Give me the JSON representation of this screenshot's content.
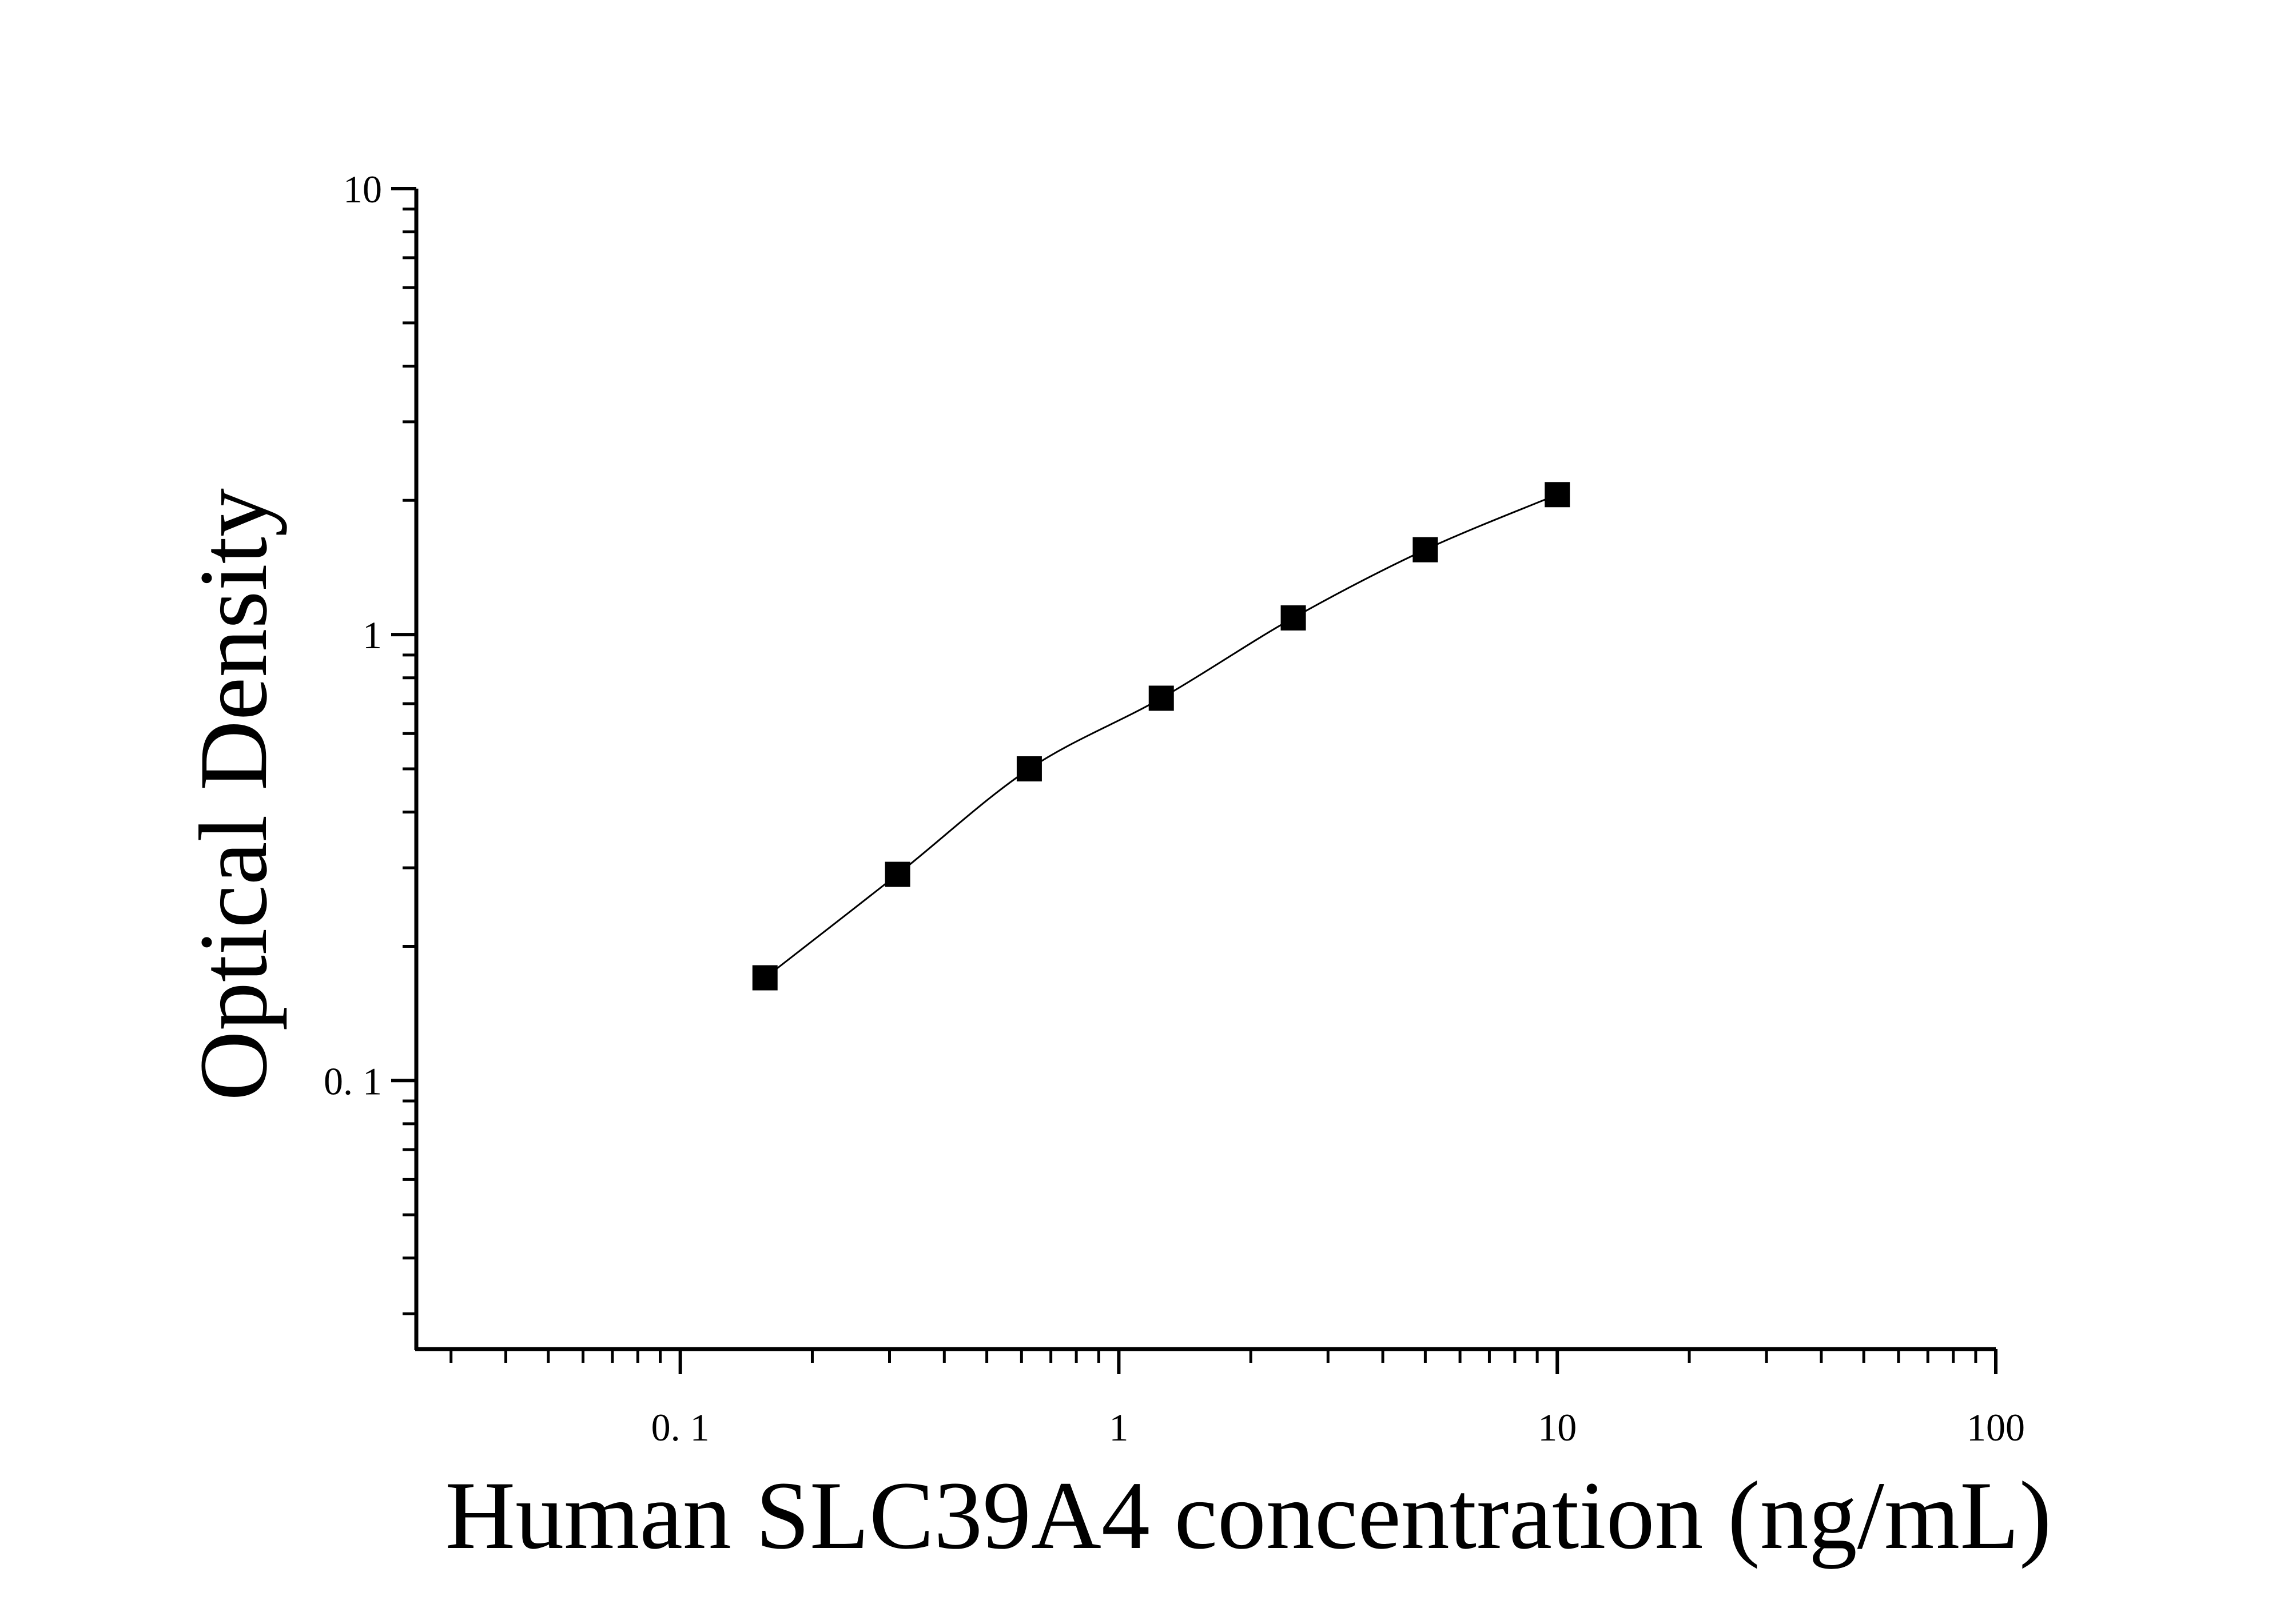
{
  "chart_data": {
    "type": "scatter",
    "title": "",
    "xlabel": "Human SLC39A4 concentration (ng/mL)",
    "ylabel": "Optical Density",
    "x_scale": "log",
    "y_scale": "log",
    "xlim": [
      0.025,
      100
    ],
    "ylim": [
      0.025,
      10
    ],
    "x_ticks": [
      {
        "value": 0.1,
        "label": "0. 1"
      },
      {
        "value": 1,
        "label": "1"
      },
      {
        "value": 10,
        "label": "10"
      },
      {
        "value": 100,
        "label": "100"
      }
    ],
    "y_ticks": [
      {
        "value": 0.1,
        "label": "0. 1"
      },
      {
        "value": 1,
        "label": "1"
      },
      {
        "value": 10,
        "label": "10"
      }
    ],
    "grid": false,
    "legend": "none",
    "marker": "square",
    "fit_line": "smooth curve through points",
    "color": "#000000",
    "series": [
      {
        "x": [
          0.156,
          0.313,
          0.625,
          1.25,
          2.5,
          5,
          10
        ],
        "y": [
          0.17,
          0.29,
          0.5,
          0.72,
          1.09,
          1.55,
          2.06
        ]
      }
    ]
  }
}
